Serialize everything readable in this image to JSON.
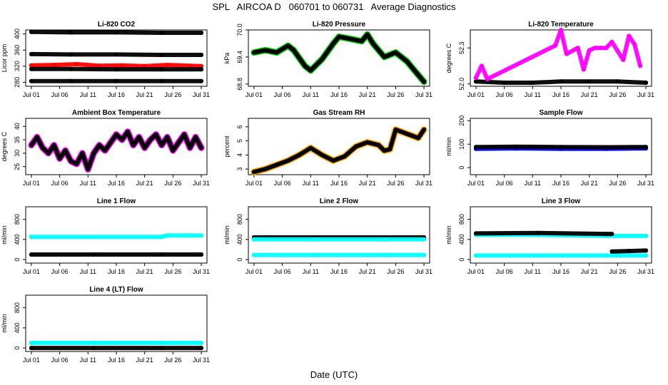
{
  "header": {
    "title": "SPL   AIRCOA D   060701 to 060731   Average Diagnostics"
  },
  "footer": {
    "xlabel": "Date (UTC)"
  },
  "chart_data": [
    {
      "type": "scatter",
      "title": "Li-820 CO2",
      "ylabel": "Licor ppm",
      "xlim": [
        "2006-06-30",
        "2006-08-01"
      ],
      "ylim": [
        270,
        410
      ],
      "xticks": [
        "Jul 01",
        "Jul 06",
        "Jul 11",
        "Jul 16",
        "Jul 21",
        "Jul 26",
        "Jul 31"
      ],
      "yticks": [
        280,
        320,
        360,
        400
      ],
      "grid": false,
      "series": [
        {
          "color": "#000000",
          "x": [
            "2006-07-01",
            "2006-07-08",
            "2006-07-16",
            "2006-07-24",
            "2006-07-31"
          ],
          "y": [
            405,
            404,
            404,
            403,
            403
          ]
        },
        {
          "color": "#000000",
          "x": [
            "2006-07-01",
            "2006-07-08",
            "2006-07-16",
            "2006-07-24",
            "2006-07-31"
          ],
          "y": [
            350,
            349,
            349,
            348,
            348
          ]
        },
        {
          "color": "#ff0000",
          "x": [
            "2006-07-01",
            "2006-07-05",
            "2006-07-09",
            "2006-07-13",
            "2006-07-17",
            "2006-07-21",
            "2006-07-25",
            "2006-07-29",
            "2006-07-31"
          ],
          "y": [
            322,
            323,
            325,
            321,
            322,
            320,
            323,
            321,
            320
          ]
        },
        {
          "color": "#000000",
          "x": [
            "2006-07-01",
            "2006-07-08",
            "2006-07-16",
            "2006-07-24",
            "2006-07-31"
          ],
          "y": [
            313,
            313,
            312,
            312,
            312
          ]
        },
        {
          "color": "#000000",
          "x": [
            "2006-07-01",
            "2006-07-08",
            "2006-07-16",
            "2006-07-24",
            "2006-07-31"
          ],
          "y": [
            283,
            283,
            283,
            283,
            283
          ]
        }
      ]
    },
    {
      "type": "line",
      "title": "Li-820 Pressure",
      "ylabel": "kPa",
      "xlim": [
        "2006-06-30",
        "2006-08-01"
      ],
      "ylim": [
        68.75,
        70.0
      ],
      "xticks": [
        "Jul 01",
        "Jul 06",
        "Jul 11",
        "Jul 16",
        "Jul 21",
        "Jul 26",
        "Jul 31"
      ],
      "yticks": [
        "68.8",
        "69.4",
        "70.0"
      ],
      "grid": false,
      "series": [
        {
          "color": "#000000",
          "outline": "#00cc00",
          "x": [
            "2006-07-01",
            "2006-07-03",
            "2006-07-05",
            "2006-07-07",
            "2006-07-08",
            "2006-07-10",
            "2006-07-11",
            "2006-07-13",
            "2006-07-15",
            "2006-07-16",
            "2006-07-18",
            "2006-07-20",
            "2006-07-21",
            "2006-07-22",
            "2006-07-24",
            "2006-07-26",
            "2006-07-28",
            "2006-07-30",
            "2006-07-31"
          ],
          "y": [
            69.5,
            69.55,
            69.5,
            69.65,
            69.55,
            69.2,
            69.1,
            69.35,
            69.7,
            69.85,
            69.8,
            69.75,
            69.9,
            69.7,
            69.4,
            69.5,
            69.3,
            69.0,
            68.85
          ]
        }
      ]
    },
    {
      "type": "scatter",
      "title": "Li-820 Temperature",
      "ylabel": "degrees C",
      "xlim": [
        "2006-06-30",
        "2006-08-01"
      ],
      "ylim": [
        51.98,
        52.45
      ],
      "xticks": [
        "Jul 01",
        "Jul 06",
        "Jul 11",
        "Jul 16",
        "Jul 21",
        "Jul 26",
        "Jul 31"
      ],
      "yticks": [
        "52.0",
        "52.3"
      ],
      "grid": false,
      "series": [
        {
          "color": "#000000",
          "x": [
            "2006-07-01",
            "2006-07-06",
            "2006-07-11",
            "2006-07-16",
            "2006-07-21",
            "2006-07-26",
            "2006-07-31"
          ],
          "y": [
            52.02,
            52.01,
            52.01,
            52.02,
            52.02,
            52.02,
            52.01
          ]
        },
        {
          "color": "#ff00ff",
          "x": [
            "2006-07-01",
            "2006-07-02",
            "2006-07-03",
            "2006-07-15",
            "2006-07-16",
            "2006-07-17",
            "2006-07-19",
            "2006-07-20",
            "2006-07-21",
            "2006-07-22",
            "2006-07-23",
            "2006-07-24",
            "2006-07-25",
            "2006-07-27",
            "2006-07-28",
            "2006-07-29",
            "2006-07-30"
          ],
          "y": [
            52.05,
            52.15,
            52.04,
            52.32,
            52.45,
            52.25,
            52.3,
            52.12,
            52.28,
            52.3,
            52.3,
            52.3,
            52.35,
            52.2,
            52.4,
            52.33,
            52.15
          ]
        }
      ]
    },
    {
      "type": "line",
      "title": "Ambient Box Temperature",
      "ylabel": "degrees C",
      "xlim": [
        "2006-06-30",
        "2006-08-01"
      ],
      "ylim": [
        22,
        43
      ],
      "xticks": [
        "Jul 01",
        "Jul 06",
        "Jul 11",
        "Jul 16",
        "Jul 21",
        "Jul 26",
        "Jul 31"
      ],
      "yticks": [
        25,
        30,
        35,
        40
      ],
      "grid": false,
      "series": [
        {
          "color": "#000000",
          "outline": "#ff00ff",
          "x": [
            "2006-07-01",
            "2006-07-02",
            "2006-07-03",
            "2006-07-04",
            "2006-07-05",
            "2006-07-06",
            "2006-07-07",
            "2006-07-08",
            "2006-07-09",
            "2006-07-10",
            "2006-07-11",
            "2006-07-12",
            "2006-07-13",
            "2006-07-14",
            "2006-07-15",
            "2006-07-16",
            "2006-07-17",
            "2006-07-18",
            "2006-07-19",
            "2006-07-20",
            "2006-07-21",
            "2006-07-22",
            "2006-07-23",
            "2006-07-24",
            "2006-07-25",
            "2006-07-26",
            "2006-07-27",
            "2006-07-28",
            "2006-07-29",
            "2006-07-30",
            "2006-07-31"
          ],
          "y": [
            33,
            36,
            32,
            30,
            33,
            28,
            31,
            27,
            26,
            30,
            24,
            30,
            33,
            31,
            34,
            37,
            35,
            38,
            33,
            36,
            32,
            35,
            37,
            33,
            36,
            31,
            34,
            37,
            32,
            36,
            32
          ]
        }
      ]
    },
    {
      "type": "line",
      "title": "Gas Stream RH",
      "ylabel": "percent",
      "xlim": [
        "2006-06-30",
        "2006-08-01"
      ],
      "ylim": [
        2.6,
        6.6
      ],
      "xticks": [
        "Jul 01",
        "Jul 06",
        "Jul 11",
        "Jul 16",
        "Jul 21",
        "Jul 26",
        "Jul 31"
      ],
      "yticks": [
        3,
        4,
        5,
        6
      ],
      "grid": false,
      "series": [
        {
          "color": "#000000",
          "outline": "#ffa500",
          "x": [
            "2006-07-01",
            "2006-07-03",
            "2006-07-05",
            "2006-07-07",
            "2006-07-09",
            "2006-07-11",
            "2006-07-13",
            "2006-07-15",
            "2006-07-17",
            "2006-07-19",
            "2006-07-21",
            "2006-07-23",
            "2006-07-24",
            "2006-07-25",
            "2006-07-26",
            "2006-07-28",
            "2006-07-30",
            "2006-07-31"
          ],
          "y": [
            2.8,
            3.0,
            3.3,
            3.6,
            4.0,
            4.5,
            4.0,
            3.6,
            3.9,
            4.6,
            4.9,
            4.7,
            4.3,
            4.4,
            5.8,
            5.5,
            5.2,
            5.8
          ]
        }
      ]
    },
    {
      "type": "scatter",
      "title": "Sample Flow",
      "ylabel": "ml/min",
      "xlim": [
        "2006-06-30",
        "2006-08-01"
      ],
      "ylim": [
        -30,
        210
      ],
      "xticks": [
        "Jul 01",
        "Jul 06",
        "Jul 11",
        "Jul 16",
        "Jul 21",
        "Jul 26",
        "Jul 31"
      ],
      "yticks": [
        0,
        100,
        200
      ],
      "grid": false,
      "series": [
        {
          "color": "#0000ff",
          "x": [
            "2006-07-01",
            "2006-07-08",
            "2006-07-16",
            "2006-07-24",
            "2006-07-31"
          ],
          "y": [
            80,
            82,
            80,
            80,
            82
          ]
        },
        {
          "color": "#000000",
          "x": [
            "2006-07-01",
            "2006-07-08",
            "2006-07-16",
            "2006-07-24",
            "2006-07-31"
          ],
          "y": [
            88,
            89,
            88,
            87,
            88
          ]
        }
      ]
    },
    {
      "type": "scatter",
      "title": "Line 1 Flow",
      "ylabel": "ml/min",
      "xlim": [
        "2006-06-30",
        "2006-08-01"
      ],
      "ylim": [
        -70,
        1050
      ],
      "xticks": [
        "Jul 01",
        "Jul 06",
        "Jul 11",
        "Jul 16",
        "Jul 21",
        "Jul 26",
        "Jul 31"
      ],
      "yticks": [
        0,
        400,
        800
      ],
      "grid": false,
      "series": [
        {
          "color": "#00ffff",
          "x": [
            "2006-07-01",
            "2006-07-12",
            "2006-07-24",
            "2006-07-25",
            "2006-07-31"
          ],
          "y": [
            450,
            450,
            450,
            480,
            480
          ]
        },
        {
          "color": "#000000",
          "x": [
            "2006-07-01",
            "2006-07-12",
            "2006-07-24",
            "2006-07-31"
          ],
          "y": [
            100,
            100,
            100,
            100
          ]
        }
      ]
    },
    {
      "type": "scatter",
      "title": "Line 2 Flow",
      "ylabel": "ml/min",
      "xlim": [
        "2006-06-30",
        "2006-08-01"
      ],
      "ylim": [
        -70,
        1050
      ],
      "xticks": [
        "Jul 01",
        "Jul 06",
        "Jul 11",
        "Jul 16",
        "Jul 21",
        "Jul 26",
        "Jul 31"
      ],
      "yticks": [
        0,
        400,
        800
      ],
      "grid": false,
      "series": [
        {
          "color": "#000000",
          "x": [
            "2006-07-01",
            "2006-07-12",
            "2006-07-24",
            "2006-07-31"
          ],
          "y": [
            440,
            440,
            440,
            440
          ]
        },
        {
          "color": "#00ffff",
          "x": [
            "2006-07-01",
            "2006-07-12",
            "2006-07-24",
            "2006-07-31"
          ],
          "y": [
            400,
            400,
            400,
            400
          ]
        },
        {
          "color": "#00ffff",
          "x": [
            "2006-07-01",
            "2006-07-12",
            "2006-07-24",
            "2006-07-31"
          ],
          "y": [
            90,
            90,
            90,
            90
          ]
        }
      ]
    },
    {
      "type": "scatter",
      "title": "Line 3 Flow",
      "ylabel": "ml/min",
      "xlim": [
        "2006-06-30",
        "2006-08-01"
      ],
      "ylim": [
        -70,
        1050
      ],
      "xticks": [
        "Jul 01",
        "Jul 06",
        "Jul 11",
        "Jul 16",
        "Jul 21",
        "Jul 26",
        "Jul 31"
      ],
      "yticks": [
        0,
        400,
        800
      ],
      "grid": false,
      "series": [
        {
          "color": "#00ffff",
          "x": [
            "2006-07-01",
            "2006-07-12",
            "2006-07-24",
            "2006-07-31"
          ],
          "y": [
            490,
            490,
            470,
            470
          ]
        },
        {
          "color": "#000000",
          "x": [
            "2006-07-01",
            "2006-07-12",
            "2006-07-24",
            "2006-07-25"
          ],
          "y": [
            520,
            530,
            510,
            510
          ]
        },
        {
          "color": "#00ffff",
          "x": [
            "2006-07-01",
            "2006-07-12",
            "2006-07-24",
            "2006-07-31"
          ],
          "y": [
            80,
            80,
            80,
            80
          ]
        },
        {
          "color": "#000000",
          "x": [
            "2006-07-25",
            "2006-07-28",
            "2006-07-31"
          ],
          "y": [
            160,
            170,
            180
          ]
        }
      ]
    },
    {
      "type": "scatter",
      "title": "Line 4 (LT) Flow",
      "ylabel": "ml/min",
      "xlim": [
        "2006-06-30",
        "2006-08-01"
      ],
      "ylim": [
        -70,
        1050
      ],
      "xticks": [
        "Jul 01",
        "Jul 06",
        "Jul 11",
        "Jul 16",
        "Jul 21",
        "Jul 26",
        "Jul 31"
      ],
      "yticks": [
        0,
        400,
        800
      ],
      "grid": false,
      "series": [
        {
          "color": "#00ffff",
          "x": [
            "2006-07-01",
            "2006-07-12",
            "2006-07-24",
            "2006-07-31"
          ],
          "y": [
            100,
            100,
            100,
            100
          ]
        },
        {
          "color": "#000000",
          "x": [
            "2006-07-01",
            "2006-07-12",
            "2006-07-24",
            "2006-07-31"
          ],
          "y": [
            0,
            0,
            0,
            0
          ]
        }
      ]
    }
  ]
}
